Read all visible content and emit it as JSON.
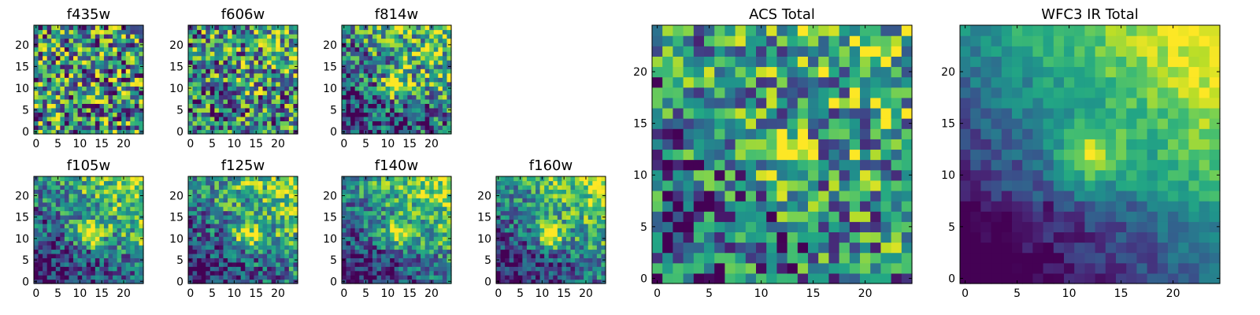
{
  "colormap": "viridis",
  "frame_color": "#000000",
  "figure": {
    "panels": [
      {
        "id": "f435w",
        "title": "f435w",
        "n": 25,
        "xticks": [
          "0",
          "5",
          "10",
          "15",
          "20"
        ],
        "yticks": [
          "0",
          "5",
          "10",
          "15",
          "20"
        ],
        "blob": {
          "cx": 12,
          "cy": 12,
          "amp": 0.0
        },
        "noise": 0.55,
        "gradient": 0.0
      },
      {
        "id": "f606w",
        "title": "f606w",
        "n": 25,
        "xticks": [
          "0",
          "5",
          "10",
          "15",
          "20"
        ],
        "yticks": [
          "0",
          "5",
          "10",
          "15",
          "20"
        ],
        "blob": {
          "cx": 12,
          "cy": 11,
          "amp": 0.25
        },
        "noise": 0.5,
        "gradient": 0.15
      },
      {
        "id": "f814w",
        "title": "f814w",
        "n": 25,
        "xticks": [
          "0",
          "5",
          "10",
          "15",
          "20"
        ],
        "yticks": [
          "0",
          "5",
          "10",
          "15",
          "20"
        ],
        "blob": {
          "cx": 12,
          "cy": 11,
          "amp": 0.55
        },
        "noise": 0.45,
        "gradient": 0.45
      },
      {
        "id": "f105w",
        "title": "f105w",
        "n": 25,
        "xticks": [
          "0",
          "5",
          "10",
          "15",
          "20"
        ],
        "yticks": [
          "0",
          "5",
          "10",
          "15",
          "20"
        ],
        "blob": {
          "cx": 12,
          "cy": 11,
          "amp": 0.55
        },
        "noise": 0.35,
        "gradient": 0.55
      },
      {
        "id": "f125w",
        "title": "f125w",
        "n": 25,
        "xticks": [
          "0",
          "5",
          "10",
          "15",
          "20"
        ],
        "yticks": [
          "0",
          "5",
          "10",
          "15",
          "20"
        ],
        "blob": {
          "cx": 13,
          "cy": 11,
          "amp": 0.5
        },
        "noise": 0.35,
        "gradient": 0.5
      },
      {
        "id": "f140w",
        "title": "f140w",
        "n": 25,
        "xticks": [
          "0",
          "5",
          "10",
          "15",
          "20"
        ],
        "yticks": [
          "0",
          "5",
          "10",
          "15",
          "20"
        ],
        "blob": {
          "cx": 12,
          "cy": 11,
          "amp": 0.5
        },
        "noise": 0.3,
        "gradient": 0.55
      },
      {
        "id": "f160w",
        "title": "f160w",
        "n": 25,
        "xticks": [
          "0",
          "5",
          "10",
          "15",
          "20"
        ],
        "yticks": [
          "0",
          "5",
          "10",
          "15",
          "20"
        ],
        "blob": {
          "cx": 12,
          "cy": 11,
          "amp": 0.55
        },
        "noise": 0.3,
        "gradient": 0.55
      },
      {
        "id": "acs-total",
        "title": "ACS Total",
        "n": 25,
        "xticks": [
          "0",
          "5",
          "10",
          "15",
          "20"
        ],
        "yticks": [
          "0",
          "5",
          "10",
          "15",
          "20"
        ],
        "blob": {
          "cx": 12,
          "cy": 12,
          "amp": 0.45
        },
        "noise": 0.45,
        "gradient": 0.3
      },
      {
        "id": "wfc3-ir-total",
        "title": "WFC3 IR Total",
        "n": 25,
        "xticks": [
          "0",
          "5",
          "10",
          "15",
          "20"
        ],
        "yticks": [
          "0",
          "5",
          "10",
          "15",
          "20"
        ],
        "blob": {
          "cx": 12,
          "cy": 12,
          "amp": 0.45
        },
        "noise": 0.12,
        "gradient": 0.75
      }
    ]
  },
  "chart_data": [
    {
      "type": "heatmap",
      "title": "f435w",
      "x_range": [
        0,
        24
      ],
      "y_range": [
        0,
        24
      ],
      "xticks": [
        0,
        5,
        10,
        15,
        20
      ],
      "yticks": [
        0,
        5,
        10,
        15,
        20
      ],
      "colormap": "viridis",
      "description_values": "noisy cutout, no clear source"
    },
    {
      "type": "heatmap",
      "title": "f606w",
      "x_range": [
        0,
        24
      ],
      "y_range": [
        0,
        24
      ],
      "xticks": [
        0,
        5,
        10,
        15,
        20
      ],
      "yticks": [
        0,
        5,
        10,
        15,
        20
      ],
      "colormap": "viridis",
      "source_center": [
        12,
        11
      ]
    },
    {
      "type": "heatmap",
      "title": "f814w",
      "x_range": [
        0,
        24
      ],
      "y_range": [
        0,
        24
      ],
      "xticks": [
        0,
        5,
        10,
        15,
        20
      ],
      "yticks": [
        0,
        5,
        10,
        15,
        20
      ],
      "colormap": "viridis",
      "source_center": [
        12,
        11
      ]
    },
    {
      "type": "heatmap",
      "title": "f105w",
      "x_range": [
        0,
        24
      ],
      "y_range": [
        0,
        24
      ],
      "xticks": [
        0,
        5,
        10,
        15,
        20
      ],
      "yticks": [
        0,
        5,
        10,
        15,
        20
      ],
      "colormap": "viridis",
      "source_center": [
        12,
        11
      ]
    },
    {
      "type": "heatmap",
      "title": "f125w",
      "x_range": [
        0,
        24
      ],
      "y_range": [
        0,
        24
      ],
      "xticks": [
        0,
        5,
        10,
        15,
        20
      ],
      "yticks": [
        0,
        5,
        10,
        15,
        20
      ],
      "colormap": "viridis",
      "source_center": [
        13,
        11
      ]
    },
    {
      "type": "heatmap",
      "title": "f140w",
      "x_range": [
        0,
        24
      ],
      "y_range": [
        0,
        24
      ],
      "xticks": [
        0,
        5,
        10,
        15,
        20
      ],
      "yticks": [
        0,
        5,
        10,
        15,
        20
      ],
      "colormap": "viridis",
      "source_center": [
        12,
        11
      ]
    },
    {
      "type": "heatmap",
      "title": "f160w",
      "x_range": [
        0,
        24
      ],
      "y_range": [
        0,
        24
      ],
      "xticks": [
        0,
        5,
        10,
        15,
        20
      ],
      "yticks": [
        0,
        5,
        10,
        15,
        20
      ],
      "colormap": "viridis",
      "source_center": [
        12,
        11
      ]
    },
    {
      "type": "heatmap",
      "title": "ACS Total",
      "x_range": [
        0,
        24
      ],
      "y_range": [
        0,
        24
      ],
      "xticks": [
        0,
        5,
        10,
        15,
        20
      ],
      "yticks": [
        0,
        5,
        10,
        15,
        20
      ],
      "colormap": "viridis",
      "source_center": [
        12,
        12
      ]
    },
    {
      "type": "heatmap",
      "title": "WFC3 IR Total",
      "x_range": [
        0,
        24
      ],
      "y_range": [
        0,
        24
      ],
      "xticks": [
        0,
        5,
        10,
        15,
        20
      ],
      "yticks": [
        0,
        5,
        10,
        15,
        20
      ],
      "colormap": "viridis",
      "source_center": [
        12,
        12
      ]
    }
  ]
}
